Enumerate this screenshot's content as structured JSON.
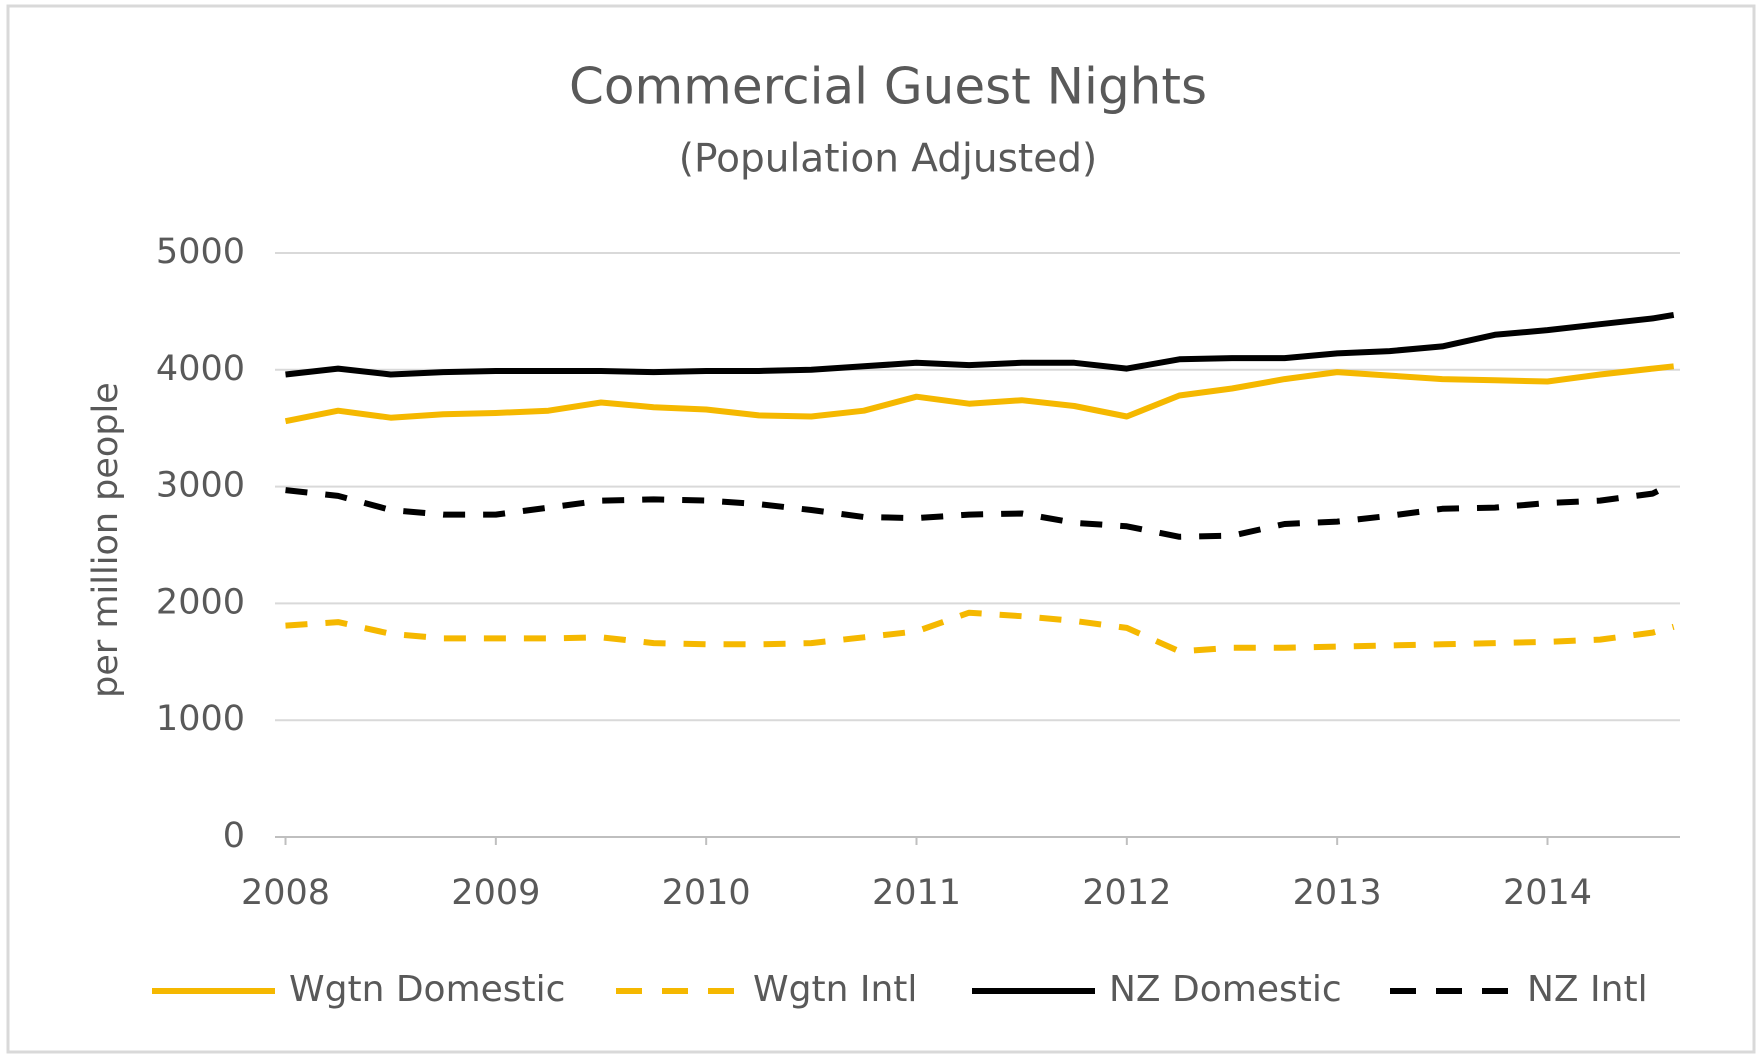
{
  "chart_data": {
    "type": "line",
    "title": "Commercial Guest Nights",
    "subtitle": "(Population Adjusted)",
    "y_label": "per million people",
    "x": [
      2008,
      2008.25,
      2008.5,
      2008.75,
      2009,
      2009.25,
      2009.5,
      2009.75,
      2010,
      2010.25,
      2010.5,
      2010.75,
      2011,
      2011.25,
      2011.5,
      2011.75,
      2012,
      2012.25,
      2012.5,
      2012.75,
      2013,
      2013.25,
      2013.5,
      2013.75,
      2014,
      2014.25,
      2014.5,
      2014.6
    ],
    "series": [
      {
        "name": "Wgtn Domestic",
        "color": "#f5b800",
        "style": "solid",
        "values": [
          3560,
          3650,
          3590,
          3620,
          3630,
          3650,
          3720,
          3680,
          3660,
          3610,
          3600,
          3650,
          3770,
          3710,
          3740,
          3690,
          3600,
          3780,
          3840,
          3920,
          3980,
          3950,
          3920,
          3910,
          3900,
          3960,
          4010,
          4030
        ]
      },
      {
        "name": "Wgtn Intl",
        "color": "#f5b800",
        "style": "dashed",
        "values": [
          1810,
          1840,
          1740,
          1700,
          1700,
          1700,
          1710,
          1660,
          1650,
          1650,
          1660,
          1710,
          1760,
          1920,
          1890,
          1850,
          1790,
          1590,
          1620,
          1620,
          1630,
          1640,
          1650,
          1660,
          1670,
          1690,
          1750,
          1800
        ]
      },
      {
        "name": "NZ Domestic",
        "color": "#000000",
        "style": "solid",
        "values": [
          3960,
          4010,
          3960,
          3980,
          3990,
          3990,
          3990,
          3980,
          3990,
          3990,
          4000,
          4030,
          4060,
          4040,
          4060,
          4060,
          4010,
          4090,
          4100,
          4100,
          4140,
          4160,
          4200,
          4300,
          4340,
          4390,
          4440,
          4470
        ]
      },
      {
        "name": "NZ Intl",
        "color": "#000000",
        "style": "dashed",
        "values": [
          2970,
          2920,
          2800,
          2760,
          2760,
          2820,
          2880,
          2890,
          2880,
          2850,
          2800,
          2740,
          2730,
          2760,
          2770,
          2690,
          2660,
          2570,
          2580,
          2680,
          2700,
          2750,
          2810,
          2820,
          2860,
          2880,
          2940,
          3030
        ]
      }
    ],
    "xlim": [
      2007.95,
      2014.63
    ],
    "xticks": [
      2008,
      2009,
      2010,
      2011,
      2012,
      2013,
      2014
    ],
    "ylim": [
      0,
      5000
    ],
    "yticks": [
      0,
      1000,
      2000,
      3000,
      4000,
      5000
    ],
    "grid": true,
    "legend": "bottom"
  }
}
